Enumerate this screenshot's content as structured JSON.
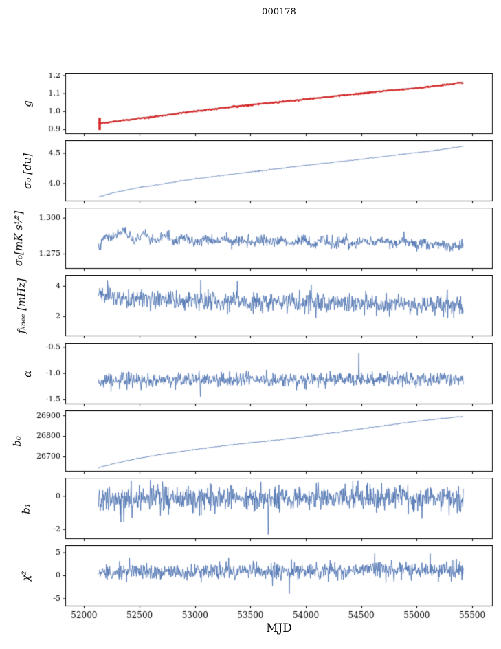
{
  "figure": {
    "title": "000178",
    "xlabel": "MJD",
    "xlim": [
      51830,
      55680
    ],
    "xticks": [
      52000,
      52500,
      53000,
      53500,
      54000,
      54500,
      55000,
      55500
    ],
    "xtick_labels": [
      "52000",
      "52500",
      "53000",
      "53500",
      "54000",
      "54500",
      "55000",
      "55500"
    ],
    "background": "#ffffff",
    "axis_color": "#000000",
    "blue": "#4c72b0",
    "red": "#d62728"
  },
  "chart_data": [
    {
      "type": "line",
      "ylabel": "g",
      "ylim": [
        0.8765,
        1.2135
      ],
      "ytick_vals": [
        0.9,
        1.0,
        1.1,
        1.2
      ],
      "ytick_labels": [
        "0.9",
        "1.0",
        "1.1",
        "1.2"
      ],
      "color": "#d62728",
      "line_width": 1.8,
      "noise": 0.0022,
      "n_points": 750,
      "trend": {
        "x": [
          52130,
          52200,
          52300,
          52400,
          52500,
          52650,
          52800,
          52950,
          53100,
          53250,
          53400,
          53550,
          53700,
          53850,
          54000,
          54150,
          54300,
          54450,
          54600,
          54750,
          54900,
          55050,
          55200,
          55300,
          55420
        ],
        "y": [
          0.933,
          0.938,
          0.946,
          0.953,
          0.962,
          0.972,
          0.985,
          0.998,
          1.008,
          1.02,
          1.03,
          1.04,
          1.048,
          1.058,
          1.068,
          1.078,
          1.088,
          1.097,
          1.107,
          1.117,
          1.125,
          1.133,
          1.145,
          1.152,
          1.163
        ]
      },
      "underlay": {
        "color": "#909090",
        "line_width": 0.9,
        "offset": 0.003
      },
      "errorbar": {
        "x": 52140,
        "y0": 0.897,
        "y1": 0.966
      }
    },
    {
      "type": "line",
      "ylabel": "σ₀ [du]",
      "ylim": [
        3.71,
        4.71
      ],
      "ytick_vals": [
        4.0,
        4.5
      ],
      "ytick_labels": [
        "4.0",
        "4.5"
      ],
      "color": "#4c72b0",
      "line_width": 0.9,
      "noise": 0.0045,
      "n_points": 800,
      "trend": {
        "x": [
          52130,
          52250,
          52400,
          52550,
          52700,
          52900,
          53100,
          53300,
          53500,
          53750,
          54000,
          54250,
          54500,
          54750,
          55000,
          55200,
          55420
        ],
        "y": [
          3.78,
          3.84,
          3.9,
          3.95,
          3.99,
          4.05,
          4.1,
          4.145,
          4.19,
          4.245,
          4.3,
          4.35,
          4.4,
          4.455,
          4.51,
          4.555,
          4.615
        ]
      }
    },
    {
      "type": "line",
      "ylabel": "σ₀[mK s¹⁄²]",
      "ylim": [
        1.265,
        1.307
      ],
      "ytick_vals": [
        1.275,
        1.3
      ],
      "ytick_labels": [
        "1.275",
        "1.300"
      ],
      "color": "#4c72b0",
      "line_width": 0.9,
      "noise": 0.0018,
      "wobble": {
        "amp": 0.0012,
        "period": 180
      },
      "n_points": 850,
      "trend": {
        "x": [
          52130,
          52200,
          52280,
          52360,
          52450,
          52550,
          52650,
          52750,
          52850,
          52950,
          53050,
          53150,
          53250,
          53350,
          53450,
          53550,
          53650,
          53750,
          53850,
          53950,
          54050,
          54150,
          54250,
          54350,
          54450,
          54550,
          54650,
          54750,
          54850,
          54950,
          55050,
          55150,
          55250,
          55350,
          55420
        ],
        "y": [
          1.28,
          1.286,
          1.2885,
          1.289,
          1.2862,
          1.287,
          1.2845,
          1.2862,
          1.285,
          1.2858,
          1.284,
          1.2852,
          1.2838,
          1.2848,
          1.2832,
          1.2842,
          1.2836,
          1.2846,
          1.283,
          1.284,
          1.2828,
          1.2838,
          1.2826,
          1.2836,
          1.2824,
          1.284,
          1.2828,
          1.2836,
          1.2822,
          1.2832,
          1.281,
          1.2828,
          1.28,
          1.2812,
          1.279
        ]
      }
    },
    {
      "type": "line",
      "ylabel": "fₖₙₑₑ [mHz]",
      "ylim": [
        0.72,
        4.72
      ],
      "ytick_vals": [
        2,
        4
      ],
      "ytick_labels": [
        "2",
        "4"
      ],
      "color": "#4c72b0",
      "line_width": 0.9,
      "noise": 0.32,
      "n_points": 850,
      "trend": {
        "x": [
          52130,
          52400,
          52700,
          53000,
          53300,
          53600,
          53900,
          54200,
          54500,
          54800,
          55100,
          55420
        ],
        "y": [
          3.35,
          3.2,
          3.1,
          3.05,
          3.0,
          2.95,
          2.9,
          2.9,
          2.85,
          2.8,
          2.75,
          2.7
        ]
      },
      "spikes": [
        {
          "x": 52210,
          "y": 4.4
        },
        {
          "x": 53380,
          "y": 4.35
        },
        {
          "x": 54050,
          "y": 4.1
        }
      ]
    },
    {
      "type": "line",
      "ylabel": "α",
      "ylim": [
        -1.58,
        -0.43
      ],
      "ytick_vals": [
        -1.5,
        -1.0,
        -0.5
      ],
      "ytick_labels": [
        "-1.5",
        "-1.0",
        "-0.5"
      ],
      "color": "#4c72b0",
      "line_width": 0.9,
      "noise": 0.068,
      "n_points": 850,
      "trend": {
        "x": [
          52130,
          53000,
          54000,
          55000,
          55420
        ],
        "y": [
          -1.13,
          -1.12,
          -1.11,
          -1.12,
          -1.11
        ]
      },
      "spikes": [
        {
          "x": 54480,
          "y": -0.62
        },
        {
          "x": 53050,
          "y": -1.44
        }
      ]
    },
    {
      "type": "line",
      "ylabel": "b₀",
      "ylim": [
        26630,
        26924
      ],
      "ytick_vals": [
        26700,
        26800,
        26900
      ],
      "ytick_labels": [
        "26700",
        "26800",
        "26900"
      ],
      "color": "#4c72b0",
      "line_width": 1.0,
      "noise": 1.2,
      "n_points": 700,
      "trend": {
        "x": [
          52130,
          52300,
          52500,
          52700,
          52900,
          53100,
          53300,
          53500,
          53700,
          53900,
          54100,
          54300,
          54500,
          54700,
          54900,
          55100,
          55300,
          55420
        ],
        "y": [
          26648,
          26671,
          26694,
          26712,
          26728,
          26743,
          26756,
          26768,
          26779,
          26792,
          26806,
          26820,
          26836,
          26851,
          26866,
          26879,
          26890,
          26896
        ]
      }
    },
    {
      "type": "line",
      "ylabel": "b₁",
      "ylim": [
        -2.55,
        1.09
      ],
      "ytick_vals": [
        -2,
        0
      ],
      "ytick_labels": [
        "-2",
        "0"
      ],
      "color": "#4c72b0",
      "line_width": 0.9,
      "noise": 0.38,
      "n_points": 850,
      "trend": {
        "x": [
          52130,
          53000,
          54000,
          55000,
          55420
        ],
        "y": [
          -0.18,
          -0.15,
          -0.12,
          -0.15,
          -0.1
        ]
      },
      "spikes": [
        {
          "x": 53660,
          "y": -2.3
        },
        {
          "x": 52360,
          "y": -1.55
        },
        {
          "x": 54470,
          "y": 0.95
        }
      ]
    },
    {
      "type": "line",
      "ylabel": "χ²",
      "ylim": [
        -6.58,
        6.58
      ],
      "ytick_vals": [
        -5,
        0,
        5
      ],
      "ytick_labels": [
        "-5",
        "0",
        "5"
      ],
      "color": "#4c72b0",
      "line_width": 0.9,
      "noise": 0.95,
      "n_points": 850,
      "trend": {
        "x": [
          52130,
          52800,
          53500,
          54200,
          54900,
          55420
        ],
        "y": [
          0.7,
          0.9,
          1.0,
          1.1,
          1.2,
          1.1
        ]
      },
      "spikes": [
        {
          "x": 53850,
          "y": -3.9
        },
        {
          "x": 54620,
          "y": 4.8
        },
        {
          "x": 52410,
          "y": 3.9
        }
      ]
    }
  ]
}
